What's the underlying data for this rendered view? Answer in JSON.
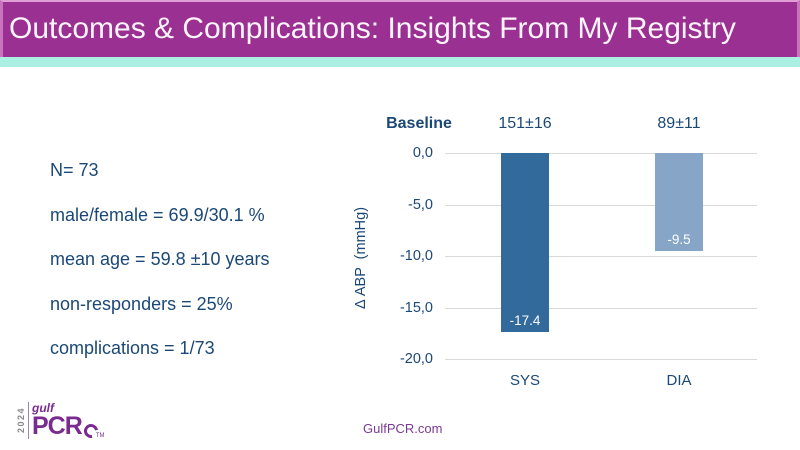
{
  "slide": {
    "title": "Outcomes & Complications: Insights From My Registry"
  },
  "stats": {
    "items": [
      "N= 73",
      "male/female = 69.9/30.1 %",
      "mean age =  59.8 ±10 years",
      "non-responders = 25%",
      "complications = 1/73"
    ]
  },
  "chart_data": {
    "type": "bar",
    "categories": [
      "SYS",
      "DIA"
    ],
    "values": [
      -17.4,
      -9.5
    ],
    "bar_labels": [
      "-17.4",
      "-9.5"
    ],
    "bar_colors": [
      "#336A9C",
      "#87A6C7"
    ],
    "baseline_header": "Baseline",
    "baseline_values": [
      "151±16",
      "89±11"
    ],
    "ylabel": "Δ ABP  (mmHg)",
    "yticks": [
      "0,0",
      "-5,0",
      "-10,0",
      "-15,0",
      "-20,0"
    ],
    "ylim": [
      -20,
      0
    ],
    "grid": true,
    "legend": "none"
  },
  "footer": {
    "logo": {
      "year": "2024",
      "gulf": "gulf",
      "pcr": "PCR",
      "tm": "TM"
    },
    "website": "GulfPCR.com"
  },
  "colors": {
    "header_purple": "#9A3092",
    "header_border_pink": "#C972BD",
    "teal_strip": "#ABEFE3",
    "dark_blue_text": "#1B4876",
    "sys_bar": "#336A9C",
    "dia_bar": "#87A6C7",
    "gridline": "#D9D9D9",
    "logo_purple": "#7A2B8F"
  }
}
